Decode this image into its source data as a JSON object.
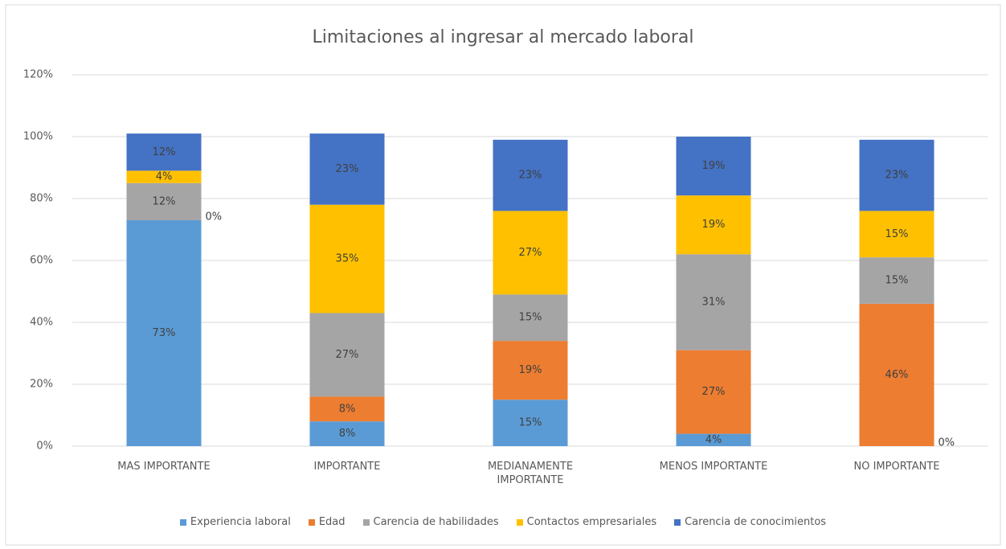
{
  "chart_data": {
    "type": "stacked_bar",
    "title": "Limitaciones al ingresar al  mercado laboral",
    "categories": [
      "MAS IMPORTANTE",
      "IMPORTANTE",
      "MEDIANAMENTE IMPORTANTE",
      "MENOS IMPORTANTE",
      "NO IMPORTANTE"
    ],
    "series": [
      {
        "name": "Experiencia laboral",
        "color": "#5b9bd5",
        "values": [
          73,
          8,
          15,
          4,
          0
        ],
        "value_labels": [
          "73%",
          "8%",
          "15%",
          "4%",
          "0%"
        ]
      },
      {
        "name": "Edad",
        "color": "#ed7d31",
        "values": [
          0,
          8,
          19,
          27,
          46
        ],
        "value_labels": [
          "0%",
          "8%",
          "19%",
          "27%",
          "46%"
        ]
      },
      {
        "name": "Carencia de habilidades",
        "color": "#a5a5a5",
        "values": [
          12,
          27,
          15,
          31,
          15
        ],
        "value_labels": [
          "12%",
          "27%",
          "15%",
          "31%",
          "15%"
        ]
      },
      {
        "name": "Contactos empresariales",
        "color": "#ffc000",
        "values": [
          4,
          35,
          27,
          19,
          15
        ],
        "value_labels": [
          "4%",
          "35%",
          "27%",
          "19%",
          "15%"
        ]
      },
      {
        "name": "Carencia de conocimientos",
        "color": "#4472c4",
        "values": [
          12,
          23,
          23,
          19,
          23
        ],
        "value_labels": [
          "12%",
          "23%",
          "23%",
          "19%",
          "23%"
        ]
      }
    ],
    "ylim": [
      0,
      120
    ],
    "yticks": [
      {
        "value": 0,
        "label": "0%"
      },
      {
        "value": 20,
        "label": "20%"
      },
      {
        "value": 40,
        "label": "40%"
      },
      {
        "value": 60,
        "label": "60%"
      },
      {
        "value": 80,
        "label": "80%"
      },
      {
        "value": 100,
        "label": "100%"
      },
      {
        "value": 120,
        "label": "120%"
      }
    ],
    "grid": true,
    "legend": "bottom"
  }
}
